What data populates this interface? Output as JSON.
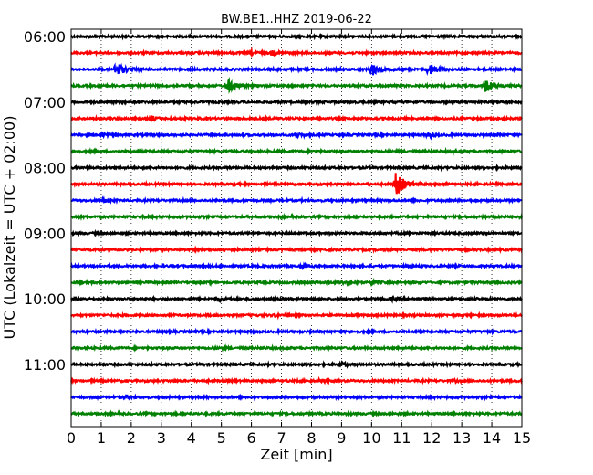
{
  "chart_data": {
    "type": "line",
    "title": "BW.BE1..HHZ 2019-06-22",
    "xlabel": "Zeit  [min]",
    "ylabel": "UTC (Lokalzeit = UTC + 02:00)",
    "xlim": [
      0,
      15
    ],
    "x_ticks": [
      "0",
      "1",
      "2",
      "3",
      "4",
      "5",
      "6",
      "7",
      "8",
      "9",
      "10",
      "11",
      "12",
      "13",
      "14",
      "15"
    ],
    "y_ticks": [
      "06:00",
      "07:00",
      "08:00",
      "09:00",
      "10:00",
      "11:00"
    ],
    "grid": "vertical dotted",
    "trace_colors": [
      "#000000",
      "#ff0000",
      "#0000ff",
      "#008000"
    ],
    "traces": [
      {
        "start": "06:00",
        "events": []
      },
      {
        "start": "06:15",
        "events": [
          {
            "t": 6.0,
            "amp": 0.25
          },
          {
            "t": 6.7,
            "amp": 0.25
          }
        ]
      },
      {
        "start": "06:30",
        "events": [
          {
            "t": 1.5,
            "amp": 0.9
          },
          {
            "t": 10.0,
            "amp": 0.8
          },
          {
            "t": 11.9,
            "amp": 0.75
          }
        ]
      },
      {
        "start": "06:45",
        "events": [
          {
            "t": 5.2,
            "amp": 0.8
          },
          {
            "t": 13.8,
            "amp": 0.75
          }
        ]
      },
      {
        "start": "07:00",
        "events": []
      },
      {
        "start": "07:15",
        "events": [
          {
            "t": 2.7,
            "amp": 0.3
          }
        ]
      },
      {
        "start": "07:30",
        "events": [
          {
            "t": 1.0,
            "amp": 0.2
          },
          {
            "t": 7.5,
            "amp": 0.2
          },
          {
            "t": 11.9,
            "amp": 0.3
          },
          {
            "t": 14.2,
            "amp": 0.1
          }
        ]
      },
      {
        "start": "07:45",
        "events": [
          {
            "t": 12.7,
            "amp": 0.15
          }
        ]
      },
      {
        "start": "08:00",
        "events": []
      },
      {
        "start": "08:15",
        "events": [
          {
            "t": 10.8,
            "amp": 1.3
          }
        ]
      },
      {
        "start": "08:30",
        "events": [
          {
            "t": 1.1,
            "amp": 0.2
          }
        ]
      },
      {
        "start": "08:45",
        "events": []
      },
      {
        "start": "09:00",
        "events": []
      },
      {
        "start": "09:15",
        "events": []
      },
      {
        "start": "09:30",
        "events": [
          {
            "t": 7.7,
            "amp": 0.15
          }
        ]
      },
      {
        "start": "09:45",
        "events": [
          {
            "t": 9.0,
            "amp": 0.15
          },
          {
            "t": 10.0,
            "amp": 0.25
          }
        ]
      },
      {
        "start": "10:00",
        "events": [
          {
            "t": 4.9,
            "amp": 0.25
          },
          {
            "t": 10.7,
            "amp": 0.2
          }
        ]
      },
      {
        "start": "10:15",
        "events": [
          {
            "t": 6.8,
            "amp": 0.1
          }
        ]
      },
      {
        "start": "10:30",
        "events": []
      },
      {
        "start": "10:45",
        "events": [
          {
            "t": 5.0,
            "amp": 0.1
          }
        ]
      },
      {
        "start": "11:00",
        "events": [
          {
            "t": 9.0,
            "amp": 0.25
          }
        ]
      },
      {
        "start": "11:15",
        "events": [
          {
            "t": 8.3,
            "amp": 0.2
          },
          {
            "t": 12.8,
            "amp": 0.1
          }
        ]
      },
      {
        "start": "11:30",
        "events": [
          {
            "t": 1.8,
            "amp": 0.2
          }
        ]
      },
      {
        "start": "11:45",
        "events": []
      }
    ]
  }
}
